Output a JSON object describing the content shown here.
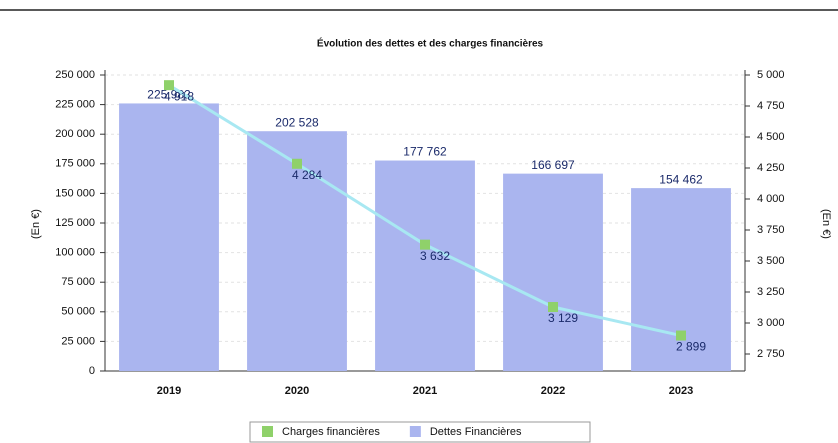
{
  "chart_data": {
    "type": "bar",
    "title": "Évolution des dettes et des charges financières",
    "y_label": "(En €)",
    "y2_label": "(En €)",
    "categories": [
      "2019",
      "2020",
      "2021",
      "2022",
      "2023"
    ],
    "series": [
      {
        "name": "Dettes Financières",
        "color": "#aab5ef",
        "type": "bar",
        "values": [
          225982,
          202528,
          177762,
          166697,
          154462
        ],
        "value_labels": [
          "225 982",
          "202 528",
          "177 762",
          "166 697",
          "154 462"
        ]
      },
      {
        "name": "Charges financières",
        "color": "#a8e8f2",
        "marker_color": "#8fd16a",
        "type": "line",
        "axis": "y2",
        "values": [
          4918,
          4284,
          3632,
          3129,
          2899
        ],
        "value_labels": [
          "4 918",
          "4 284",
          "3 632",
          "3 129",
          "2 899"
        ]
      }
    ],
    "ylim": [
      0,
      250000
    ],
    "yticks": [
      0,
      {
        "value": 25000,
        "label": "25 000"
      },
      {
        "value": 50000,
        "label": "50 000"
      },
      {
        "value": 75000,
        "label": "75 000"
      },
      {
        "value": 100000,
        "label": "100 000"
      },
      {
        "value": 125000,
        "label": "125 000"
      },
      {
        "value": 150000,
        "label": "150 000"
      },
      {
        "value": 175000,
        "label": "175 000"
      },
      {
        "value": 200000,
        "label": "200 000"
      },
      {
        "value": 225000,
        "label": "225 000"
      },
      {
        "value": 250000,
        "label": "250 000"
      }
    ],
    "y2lim": [
      2613,
      5000
    ],
    "y2ticks": [
      {
        "value": 2750,
        "label": "2 750"
      },
      {
        "value": 3000,
        "label": "3 000"
      },
      {
        "value": 3250,
        "label": "3 250"
      },
      {
        "value": 3500,
        "label": "3 500"
      },
      {
        "value": 3750,
        "label": "3 750"
      },
      {
        "value": 4000,
        "label": "4 000"
      },
      {
        "value": 4250,
        "label": "4 250"
      },
      {
        "value": 4500,
        "label": "4 500"
      },
      {
        "value": 4750,
        "label": "4 750"
      },
      {
        "value": 5000,
        "label": "5 000"
      }
    ],
    "grid": true,
    "legend": "bottom"
  }
}
